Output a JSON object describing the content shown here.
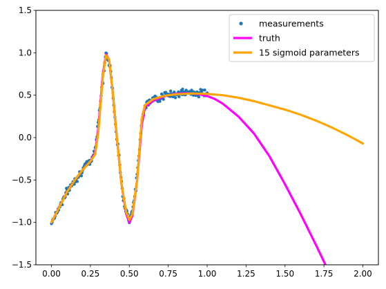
{
  "chart_data": {
    "type": "line",
    "title": "",
    "xlabel": "",
    "ylabel": "",
    "xlim": [
      -0.1,
      2.1
    ],
    "ylim": [
      -1.5,
      1.5
    ],
    "x_ticks": [
      0.0,
      0.25,
      0.5,
      0.75,
      1.0,
      1.25,
      1.5,
      1.75,
      2.0
    ],
    "x_tick_labels": [
      "0.00",
      "0.25",
      "0.50",
      "0.75",
      "1.00",
      "1.25",
      "1.50",
      "1.75",
      "2.00"
    ],
    "y_ticks": [
      -1.5,
      -1.0,
      -0.5,
      0.0,
      0.5,
      1.0,
      1.5
    ],
    "y_tick_labels": [
      "−1.5",
      "−1.0",
      "−0.5",
      "0.0",
      "0.5",
      "1.0",
      "1.5"
    ],
    "grid": false,
    "legend_position": "top-right",
    "series": [
      {
        "name": "measurements",
        "kind": "scatter",
        "color": "#1f77b4",
        "x_range": [
          0.0,
          1.0
        ],
        "approx_profile": [
          [
            0.0,
            -1.0
          ],
          [
            0.05,
            -0.82
          ],
          [
            0.1,
            -0.64
          ],
          [
            0.15,
            -0.5
          ],
          [
            0.2,
            -0.38
          ],
          [
            0.25,
            -0.28
          ],
          [
            0.28,
            -0.15
          ],
          [
            0.31,
            0.35
          ],
          [
            0.35,
            1.0
          ],
          [
            0.38,
            0.8
          ],
          [
            0.42,
            0.0
          ],
          [
            0.46,
            -0.7
          ],
          [
            0.5,
            -1.0
          ],
          [
            0.54,
            -0.65
          ],
          [
            0.58,
            0.2
          ],
          [
            0.6,
            0.38
          ],
          [
            0.65,
            0.44
          ],
          [
            0.7,
            0.48
          ],
          [
            0.8,
            0.52
          ],
          [
            0.9,
            0.53
          ],
          [
            1.0,
            0.52
          ]
        ]
      },
      {
        "name": "truth",
        "kind": "line",
        "color": "#ff00ff",
        "points": [
          [
            0.0,
            -1.0
          ],
          [
            0.05,
            -0.82
          ],
          [
            0.1,
            -0.64
          ],
          [
            0.15,
            -0.5
          ],
          [
            0.2,
            -0.38
          ],
          [
            0.25,
            -0.28
          ],
          [
            0.28,
            -0.18
          ],
          [
            0.3,
            0.1
          ],
          [
            0.33,
            0.75
          ],
          [
            0.35,
            0.98
          ],
          [
            0.37,
            0.92
          ],
          [
            0.39,
            0.6
          ],
          [
            0.42,
            0.0
          ],
          [
            0.45,
            -0.55
          ],
          [
            0.48,
            -0.9
          ],
          [
            0.5,
            -1.0
          ],
          [
            0.52,
            -0.92
          ],
          [
            0.55,
            -0.5
          ],
          [
            0.58,
            0.15
          ],
          [
            0.6,
            0.36
          ],
          [
            0.65,
            0.43
          ],
          [
            0.7,
            0.47
          ],
          [
            0.75,
            0.5
          ],
          [
            0.8,
            0.515
          ],
          [
            0.85,
            0.522
          ],
          [
            0.9,
            0.52
          ],
          [
            0.95,
            0.51
          ],
          [
            1.0,
            0.49
          ],
          [
            1.05,
            0.455
          ],
          [
            1.1,
            0.4
          ],
          [
            1.2,
            0.25
          ],
          [
            1.3,
            0.05
          ],
          [
            1.4,
            -0.22
          ],
          [
            1.5,
            -0.55
          ],
          [
            1.6,
            -0.9
          ],
          [
            1.7,
            -1.27
          ],
          [
            1.76,
            -1.5
          ]
        ]
      },
      {
        "name": "15 sigmoid parameters",
        "kind": "line",
        "color": "#ffa500",
        "points": [
          [
            0.0,
            -1.0
          ],
          [
            0.05,
            -0.82
          ],
          [
            0.1,
            -0.64
          ],
          [
            0.15,
            -0.5
          ],
          [
            0.2,
            -0.38
          ],
          [
            0.25,
            -0.28
          ],
          [
            0.28,
            -0.2
          ],
          [
            0.3,
            0.05
          ],
          [
            0.33,
            0.72
          ],
          [
            0.35,
            0.97
          ],
          [
            0.37,
            0.92
          ],
          [
            0.39,
            0.6
          ],
          [
            0.42,
            0.0
          ],
          [
            0.45,
            -0.55
          ],
          [
            0.48,
            -0.88
          ],
          [
            0.5,
            -0.97
          ],
          [
            0.52,
            -0.9
          ],
          [
            0.55,
            -0.5
          ],
          [
            0.58,
            0.22
          ],
          [
            0.6,
            0.38
          ],
          [
            0.65,
            0.45
          ],
          [
            0.7,
            0.48
          ],
          [
            0.75,
            0.5
          ],
          [
            0.8,
            0.51
          ],
          [
            0.9,
            0.52
          ],
          [
            1.0,
            0.515
          ],
          [
            1.1,
            0.5
          ],
          [
            1.2,
            0.47
          ],
          [
            1.3,
            0.43
          ],
          [
            1.4,
            0.38
          ],
          [
            1.5,
            0.33
          ],
          [
            1.6,
            0.27
          ],
          [
            1.7,
            0.2
          ],
          [
            1.8,
            0.12
          ],
          [
            1.9,
            0.03
          ],
          [
            2.0,
            -0.07
          ]
        ]
      }
    ]
  }
}
